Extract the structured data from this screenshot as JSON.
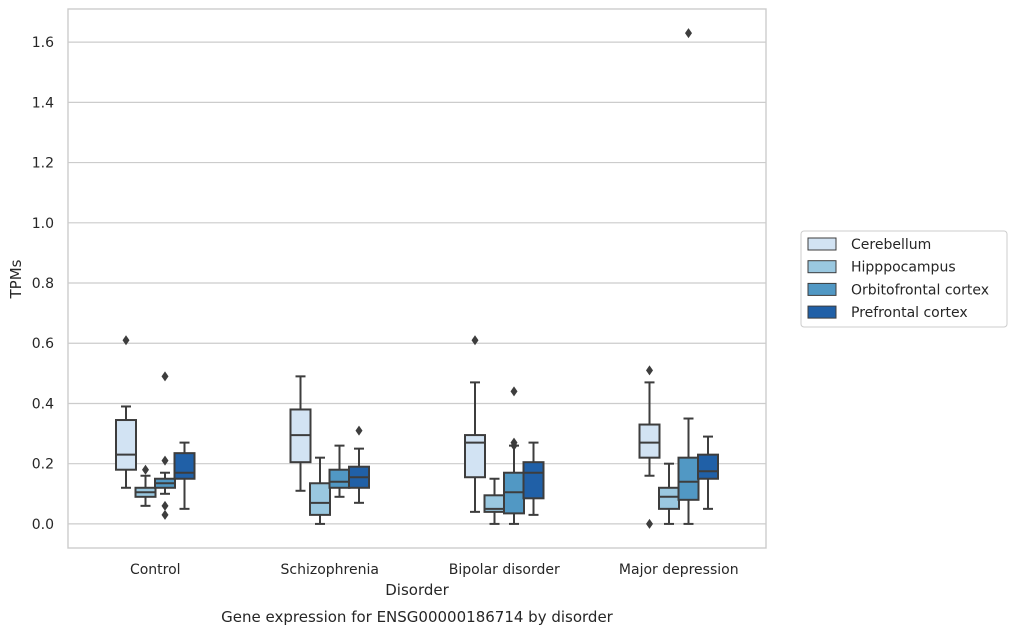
{
  "caption": "Gene expression for ENSG00000186714 by disorder",
  "colors": {
    "Cerebellum": "#d2e3f3",
    "Hipppocampus": "#9ac8e0",
    "Orbitofrontal cortex": "#5198c4",
    "Prefrontal cortex": "#2060a7",
    "grid": "#cccccc",
    "frame": "#cccccc",
    "line": "#3d3d3d"
  },
  "chart_data": {
    "type": "box",
    "xlabel": "Disorder",
    "ylabel": "TPMs",
    "ylim": [
      -0.08,
      1.71
    ],
    "yticks": [
      "0.0",
      "0.2",
      "0.4",
      "0.6",
      "0.8",
      "1.0",
      "1.2",
      "1.4",
      "1.6"
    ],
    "categories": [
      "Control",
      "Schizophrenia",
      "Bipolar disorder",
      "Major depression"
    ],
    "grid": "horizontal",
    "legend_position": "right",
    "series": [
      {
        "name": "Cerebellum",
        "boxes": [
          {
            "whisker_low": 0.12,
            "q1": 0.18,
            "median": 0.23,
            "q3": 0.345,
            "whisker_high": 0.39,
            "outliers": [
              0.61
            ]
          },
          {
            "whisker_low": 0.11,
            "q1": 0.205,
            "median": 0.295,
            "q3": 0.38,
            "whisker_high": 0.49,
            "outliers": []
          },
          {
            "whisker_low": 0.04,
            "q1": 0.155,
            "median": 0.27,
            "q3": 0.295,
            "whisker_high": 0.47,
            "outliers": [
              0.61
            ]
          },
          {
            "whisker_low": 0.16,
            "q1": 0.22,
            "median": 0.27,
            "q3": 0.33,
            "whisker_high": 0.47,
            "outliers": [
              0.51,
              0.0
            ]
          }
        ]
      },
      {
        "name": "Hipppocampus",
        "boxes": [
          {
            "whisker_low": 0.06,
            "q1": 0.09,
            "median": 0.105,
            "q3": 0.12,
            "whisker_high": 0.16,
            "outliers": [
              0.18
            ]
          },
          {
            "whisker_low": 0.0,
            "q1": 0.03,
            "median": 0.07,
            "q3": 0.135,
            "whisker_high": 0.22,
            "outliers": []
          },
          {
            "whisker_low": 0.0,
            "q1": 0.04,
            "median": 0.05,
            "q3": 0.095,
            "whisker_high": 0.15,
            "outliers": []
          },
          {
            "whisker_low": 0.0,
            "q1": 0.05,
            "median": 0.09,
            "q3": 0.12,
            "whisker_high": 0.2,
            "outliers": []
          }
        ]
      },
      {
        "name": "Orbitofrontal cortex",
        "boxes": [
          {
            "whisker_low": 0.1,
            "q1": 0.12,
            "median": 0.135,
            "q3": 0.15,
            "whisker_high": 0.17,
            "outliers": [
              0.49,
              0.21,
              0.06,
              0.03
            ]
          },
          {
            "whisker_low": 0.09,
            "q1": 0.12,
            "median": 0.14,
            "q3": 0.18,
            "whisker_high": 0.26,
            "outliers": []
          },
          {
            "whisker_low": 0.0,
            "q1": 0.035,
            "median": 0.105,
            "q3": 0.17,
            "whisker_high": 0.26,
            "outliers": [
              0.44,
              0.27,
              0.26
            ]
          },
          {
            "whisker_low": 0.0,
            "q1": 0.08,
            "median": 0.14,
            "q3": 0.22,
            "whisker_high": 0.35,
            "outliers": [
              1.63
            ]
          }
        ]
      },
      {
        "name": "Prefrontal cortex",
        "boxes": [
          {
            "whisker_low": 0.05,
            "q1": 0.15,
            "median": 0.17,
            "q3": 0.235,
            "whisker_high": 0.27,
            "outliers": []
          },
          {
            "whisker_low": 0.07,
            "q1": 0.12,
            "median": 0.155,
            "q3": 0.19,
            "whisker_high": 0.25,
            "outliers": [
              0.31
            ]
          },
          {
            "whisker_low": 0.03,
            "q1": 0.085,
            "median": 0.17,
            "q3": 0.205,
            "whisker_high": 0.27,
            "outliers": []
          },
          {
            "whisker_low": 0.05,
            "q1": 0.15,
            "median": 0.175,
            "q3": 0.23,
            "whisker_high": 0.29,
            "outliers": []
          }
        ]
      }
    ]
  }
}
